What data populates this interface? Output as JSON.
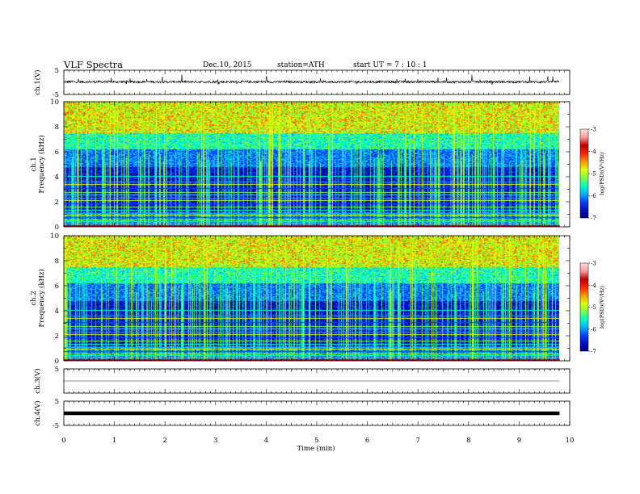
{
  "header": {
    "title": "VLF  Spectra",
    "date": "Dec.10, 2015",
    "station": "station=ATH",
    "start": "start  UT  =    7  : 10 : 1"
  },
  "chart_data": [
    {
      "type": "line",
      "name": "ch1-waveform",
      "ylabel": "ch.1(V)",
      "ylim": [
        -5,
        5
      ],
      "yticks": [
        "5",
        "-5"
      ],
      "xlim": [
        0,
        10
      ],
      "baseline": 0.2,
      "noise_amplitude": 0.5,
      "spike_amplitude": 2.0
    },
    {
      "type": "heatmap",
      "name": "ch1-spectrogram",
      "ylabel": "ch.1\nFrequency  (kHz)",
      "ylim": [
        0,
        10
      ],
      "yticks": [
        "0",
        "2",
        "4",
        "6",
        "8",
        "10"
      ],
      "xlim": [
        0,
        9.8
      ],
      "colorbar": {
        "label": "log(PSD)(V²/Hz)",
        "range": [
          -7,
          -3
        ],
        "ticks": [
          "-3",
          "-4",
          "-5",
          "-6",
          "-7"
        ]
      }
    },
    {
      "type": "heatmap",
      "name": "ch2-spectrogram",
      "ylabel": "ch.2\nFrequency  (kHz)",
      "ylim": [
        0,
        10
      ],
      "yticks": [
        "0",
        "2",
        "4",
        "6",
        "8",
        "10"
      ],
      "xlim": [
        0,
        9.8
      ],
      "colorbar": {
        "label": "log(PSD)(V²/Hz)",
        "range": [
          -7,
          -3
        ],
        "ticks": [
          "-3",
          "-4",
          "-5",
          "-6",
          "-7"
        ]
      }
    },
    {
      "type": "line",
      "name": "ch3-waveform",
      "ylabel": "ch.3(V)",
      "ylim": [
        -5,
        5
      ],
      "yticks": [
        "5"
      ],
      "xlim": [
        0,
        10
      ],
      "baseline": 0.0
    },
    {
      "type": "line",
      "name": "ch4-waveform",
      "ylabel": "ch.4(V)",
      "ylim": [
        -5,
        5
      ],
      "yticks": [
        "5",
        "-5"
      ],
      "xlim": [
        0,
        10
      ],
      "baseline": 0.0
    }
  ],
  "xaxis": {
    "label": "Time  (min)",
    "range": [
      0,
      10
    ],
    "ticks": [
      "0",
      "1",
      "2",
      "3",
      "4",
      "5",
      "6",
      "7",
      "8",
      "9",
      "10"
    ]
  },
  "colors": {
    "spectrum": [
      "#000080",
      "#0010c8",
      "#0040ff",
      "#00b4ff",
      "#00ffc0",
      "#7fff40",
      "#e0ff00",
      "#ff9000",
      "#ff2000",
      "#c00000",
      "#ff9a9a",
      "#ffdede"
    ]
  }
}
